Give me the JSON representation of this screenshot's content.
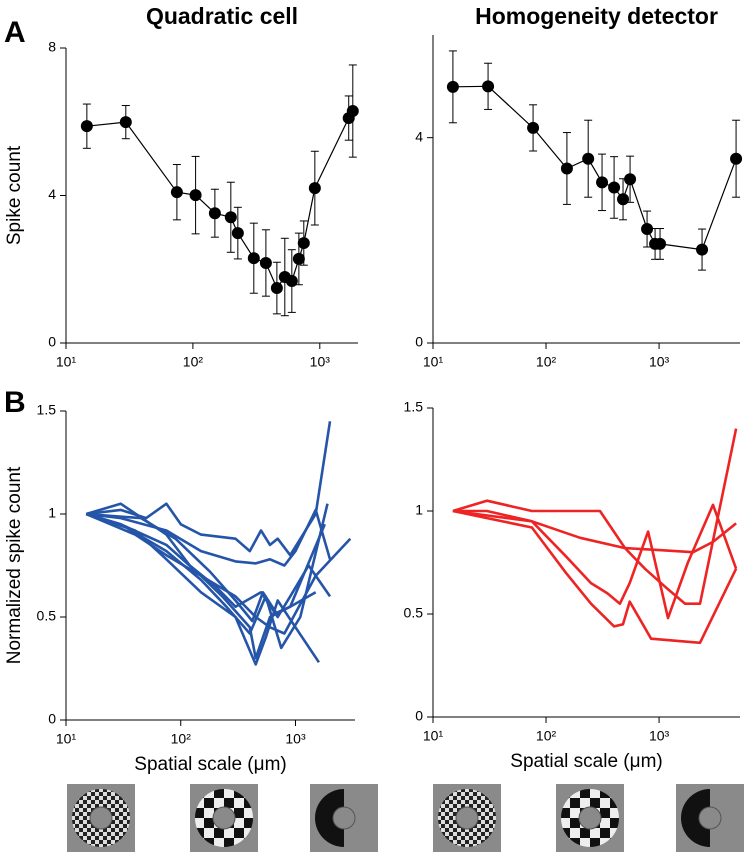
{
  "panel_labels": [
    "A",
    "B"
  ],
  "chart_data": [
    {
      "type": "line",
      "title": "Quadratic cell",
      "ylabel": "Spike count",
      "log_x": true,
      "markers": true,
      "color": "#000000",
      "xlim": [
        10,
        2000
      ],
      "ylim": [
        0,
        8
      ],
      "xticks": [
        {
          "value": 10,
          "label": "10¹"
        },
        {
          "value": 100,
          "label": "10²"
        },
        {
          "value": 1000,
          "label": "10³"
        }
      ],
      "yticks": [
        0,
        4,
        8
      ],
      "series": [
        {
          "x": [
            14.6,
            29.6,
            74.8,
            105,
            149,
            199,
            226,
            302,
            376,
            459,
            530,
            602,
            684,
            748,
            914,
            1690,
            1820
          ],
          "values": [
            5.88,
            5.99,
            4.09,
            4.01,
            3.52,
            3.41,
            2.98,
            2.3,
            2.17,
            1.49,
            1.79,
            1.68,
            2.28,
            2.71,
            4.2,
            6.1,
            6.29
          ],
          "errors": [
            0.6,
            0.45,
            0.75,
            1.05,
            0.65,
            0.95,
            0.7,
            0.95,
            0.9,
            0.7,
            1.05,
            0.85,
            0.7,
            0.6,
            1.0,
            0.6,
            1.25
          ]
        }
      ]
    },
    {
      "type": "line",
      "title": "Homogeneity detector",
      "log_x": true,
      "markers": true,
      "color": "#000000",
      "xlim": [
        10,
        5200
      ],
      "ylim": [
        0,
        6
      ],
      "xticks": [
        {
          "value": 10,
          "label": "10¹"
        },
        {
          "value": 100,
          "label": "10²"
        },
        {
          "value": 1000,
          "label": "10³"
        }
      ],
      "yticks": [
        0,
        4
      ],
      "series": [
        {
          "x": [
            15,
            30.7,
            76.8,
            153,
            236,
            313,
            400,
            480,
            554,
            783,
            922,
            1020,
            2400,
            4800
          ],
          "values": [
            4.99,
            5.0,
            4.19,
            3.4,
            3.59,
            3.13,
            3.03,
            2.8,
            3.19,
            2.22,
            1.93,
            1.93,
            1.82,
            3.59
          ],
          "errors": [
            0.7,
            0.45,
            0.45,
            0.7,
            0.75,
            0.55,
            0.6,
            0.4,
            0.45,
            0.35,
            0.3,
            0.3,
            0.4,
            0.75
          ]
        }
      ]
    },
    {
      "type": "line",
      "ylabel": "Normalized spike count",
      "xlabel": "Spatial scale (μm)",
      "log_x": true,
      "markers": false,
      "color": "#2555a8",
      "xlim": [
        10,
        3300
      ],
      "ylim": [
        0,
        1.5
      ],
      "xticks": [
        {
          "value": 10,
          "label": "10¹"
        },
        {
          "value": 100,
          "label": "10²"
        },
        {
          "value": 1000,
          "label": "10³"
        }
      ],
      "yticks": [
        0,
        0.5,
        1,
        1.5
      ],
      "series": [
        {
          "x": [
            15,
            30,
            50,
            75,
            100,
            150,
            300,
            400,
            500,
            600,
            700,
            900,
            1500,
            2000
          ],
          "values": [
            1,
            1.02,
            0.98,
            1.05,
            0.95,
            0.9,
            0.88,
            0.82,
            0.92,
            0.85,
            0.88,
            0.8,
            1.0,
            1.45
          ]
        },
        {
          "x": [
            15,
            30,
            75,
            150,
            300,
            450,
            600,
            800,
            1000,
            1500,
            2000
          ],
          "values": [
            1,
            0.98,
            0.92,
            0.82,
            0.77,
            0.76,
            0.78,
            0.75,
            0.82,
            1.02,
            0.78
          ]
        },
        {
          "x": [
            15,
            30,
            75,
            150,
            300,
            450,
            600,
            800,
            1500,
            3000
          ],
          "values": [
            1,
            0.95,
            0.85,
            0.7,
            0.6,
            0.5,
            0.45,
            0.42,
            0.7,
            0.88
          ]
        },
        {
          "x": [
            15,
            40,
            75,
            150,
            230,
            400,
            450,
            600,
            900,
            1500
          ],
          "values": [
            1,
            0.9,
            0.8,
            0.7,
            0.6,
            0.45,
            0.3,
            0.5,
            0.55,
            0.62
          ]
        },
        {
          "x": [
            15,
            40,
            75,
            150,
            300,
            450,
            550,
            700,
            1000,
            1600
          ],
          "values": [
            1,
            0.92,
            0.78,
            0.62,
            0.5,
            0.27,
            0.4,
            0.58,
            0.45,
            0.28
          ]
        },
        {
          "x": [
            15,
            30,
            75,
            120,
            200,
            300,
            500,
            700,
            900,
            1300,
            2000
          ],
          "values": [
            1,
            1.05,
            0.9,
            0.75,
            0.65,
            0.55,
            0.62,
            0.5,
            0.6,
            0.75,
            0.6
          ]
        },
        {
          "x": [
            15,
            30,
            75,
            150,
            250,
            400,
            550,
            750,
            1100,
            1900
          ],
          "values": [
            1,
            0.95,
            0.82,
            0.68,
            0.55,
            0.42,
            0.6,
            0.35,
            0.5,
            1.05
          ]
        },
        {
          "x": [
            15,
            45,
            90,
            180,
            300,
            420,
            520,
            680,
            900,
            1800
          ],
          "values": [
            1,
            0.98,
            0.88,
            0.72,
            0.58,
            0.48,
            0.62,
            0.52,
            0.55,
            0.95
          ]
        }
      ]
    },
    {
      "type": "line",
      "xlabel": "Spatial scale (μm)",
      "log_x": true,
      "markers": false,
      "color": "#ee2424",
      "xlim": [
        10,
        5200
      ],
      "ylim": [
        0,
        1.5
      ],
      "xticks": [
        {
          "value": 10,
          "label": "10¹"
        },
        {
          "value": 100,
          "label": "10²"
        },
        {
          "value": 1000,
          "label": "10³"
        }
      ],
      "yticks": [
        0,
        0.5,
        1,
        1.5
      ],
      "series": [
        {
          "x": [
            15,
            30,
            75,
            300,
            500,
            750,
            1200,
            1700,
            2300,
            4800
          ],
          "values": [
            1,
            1.05,
            1.0,
            1.0,
            0.82,
            0.72,
            0.62,
            0.55,
            0.55,
            1.4
          ]
        },
        {
          "x": [
            15,
            30,
            75,
            200,
            500,
            1000,
            2000,
            3000,
            4800
          ],
          "values": [
            1,
            1.0,
            0.95,
            0.87,
            0.82,
            0.81,
            0.8,
            0.85,
            0.94
          ]
        },
        {
          "x": [
            15,
            75,
            150,
            250,
            350,
            450,
            550,
            800,
            1200,
            1800,
            3000,
            4800
          ],
          "values": [
            1,
            0.95,
            0.78,
            0.65,
            0.6,
            0.55,
            0.65,
            0.9,
            0.48,
            0.75,
            1.03,
            0.72
          ]
        },
        {
          "x": [
            15,
            75,
            150,
            250,
            400,
            480,
            550,
            850,
            2300,
            4800
          ],
          "values": [
            1,
            0.92,
            0.7,
            0.55,
            0.44,
            0.45,
            0.56,
            0.38,
            0.36,
            0.72
          ]
        }
      ]
    }
  ]
}
